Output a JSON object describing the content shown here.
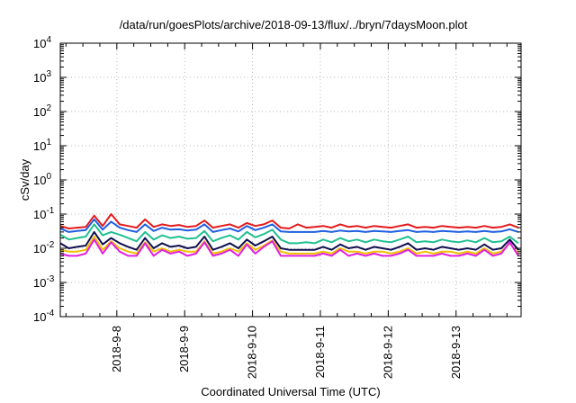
{
  "chart_data": {
    "type": "line",
    "title": "/data/run/goesPlots/archive/2018-09-13/flux/../bryn/7daysMoon.plot",
    "xlabel": "Coordinated Universal Time (UTC)",
    "ylabel": "cSv/day",
    "yscale": "log",
    "ylim": [
      0.0001,
      10000
    ],
    "xlim": [
      "2018-09-07T04:00",
      "2018-09-13T23:00"
    ],
    "grid": true,
    "legend": "none",
    "y_ticks": [
      {
        "base": "10",
        "exp": "-4"
      },
      {
        "base": "10",
        "exp": "-3"
      },
      {
        "base": "10",
        "exp": "-2"
      },
      {
        "base": "10",
        "exp": "-1"
      },
      {
        "base": "10",
        "exp": "0"
      },
      {
        "base": "10",
        "exp": "1"
      },
      {
        "base": "10",
        "exp": "2"
      },
      {
        "base": "10",
        "exp": "3"
      },
      {
        "base": "10",
        "exp": "4"
      }
    ],
    "x_ticks": [
      {
        "date": "2018-09-08",
        "label": "2018-9-8"
      },
      {
        "date": "2018-09-09",
        "label": "2018-9-9"
      },
      {
        "date": "2018-09-10",
        "label": "2018-9-10"
      },
      {
        "date": "2018-09-11",
        "label": "2018-9-11"
      },
      {
        "date": "2018-09-12",
        "label": "2018-9-12"
      },
      {
        "date": "2018-09-13",
        "label": "2018-9-13"
      }
    ],
    "series": [
      {
        "color": "#e41a1c",
        "x": [
          "2018-09-07T04:00",
          "2018-09-07T07:00",
          "2018-09-07T10:00",
          "2018-09-07T13:00",
          "2018-09-07T16:00",
          "2018-09-07T19:00",
          "2018-09-07T22:00",
          "2018-09-08T01:00",
          "2018-09-08T04:00",
          "2018-09-08T07:00",
          "2018-09-08T10:00",
          "2018-09-08T13:00",
          "2018-09-08T16:00",
          "2018-09-08T19:00",
          "2018-09-08T22:00",
          "2018-09-09T01:00",
          "2018-09-09T04:00",
          "2018-09-09T07:00",
          "2018-09-09T10:00",
          "2018-09-09T13:00",
          "2018-09-09T16:00",
          "2018-09-09T19:00",
          "2018-09-09T22:00",
          "2018-09-10T01:00",
          "2018-09-10T04:00",
          "2018-09-10T07:00",
          "2018-09-10T10:00",
          "2018-09-10T13:00",
          "2018-09-10T16:00",
          "2018-09-10T19:00",
          "2018-09-10T22:00",
          "2018-09-11T01:00",
          "2018-09-11T04:00",
          "2018-09-11T07:00",
          "2018-09-11T10:00",
          "2018-09-11T13:00",
          "2018-09-11T16:00",
          "2018-09-11T19:00",
          "2018-09-11T22:00",
          "2018-09-12T01:00",
          "2018-09-12T04:00",
          "2018-09-12T07:00",
          "2018-09-12T10:00",
          "2018-09-12T13:00",
          "2018-09-12T16:00",
          "2018-09-12T19:00",
          "2018-09-12T22:00",
          "2018-09-13T01:00",
          "2018-09-13T04:00",
          "2018-09-13T07:00",
          "2018-09-13T10:00",
          "2018-09-13T13:00",
          "2018-09-13T16:00",
          "2018-09-13T19:00",
          "2018-09-13T22:00"
        ],
        "values": [
          0.045,
          0.038,
          0.04,
          0.042,
          0.09,
          0.045,
          0.1,
          0.05,
          0.045,
          0.04,
          0.07,
          0.042,
          0.05,
          0.045,
          0.048,
          0.042,
          0.045,
          0.065,
          0.04,
          0.045,
          0.05,
          0.04,
          0.055,
          0.045,
          0.05,
          0.065,
          0.04,
          0.038,
          0.05,
          0.04,
          0.042,
          0.045,
          0.04,
          0.05,
          0.042,
          0.045,
          0.04,
          0.045,
          0.042,
          0.04,
          0.045,
          0.05,
          0.04,
          0.042,
          0.04,
          0.045,
          0.042,
          0.04,
          0.042,
          0.04,
          0.045,
          0.04,
          0.042,
          0.05,
          0.04
        ]
      },
      {
        "color": "#1f5fe0",
        "x": [
          "2018-09-07T04:00",
          "2018-09-07T07:00",
          "2018-09-07T10:00",
          "2018-09-07T13:00",
          "2018-09-07T16:00",
          "2018-09-07T19:00",
          "2018-09-07T22:00",
          "2018-09-08T01:00",
          "2018-09-08T04:00",
          "2018-09-08T07:00",
          "2018-09-08T10:00",
          "2018-09-08T13:00",
          "2018-09-08T16:00",
          "2018-09-08T19:00",
          "2018-09-08T22:00",
          "2018-09-09T01:00",
          "2018-09-09T04:00",
          "2018-09-09T07:00",
          "2018-09-09T10:00",
          "2018-09-09T13:00",
          "2018-09-09T16:00",
          "2018-09-09T19:00",
          "2018-09-09T22:00",
          "2018-09-10T01:00",
          "2018-09-10T04:00",
          "2018-09-10T07:00",
          "2018-09-10T10:00",
          "2018-09-10T13:00",
          "2018-09-10T16:00",
          "2018-09-10T19:00",
          "2018-09-10T22:00",
          "2018-09-11T01:00",
          "2018-09-11T04:00",
          "2018-09-11T07:00",
          "2018-09-11T10:00",
          "2018-09-11T13:00",
          "2018-09-11T16:00",
          "2018-09-11T19:00",
          "2018-09-11T22:00",
          "2018-09-12T01:00",
          "2018-09-12T04:00",
          "2018-09-12T07:00",
          "2018-09-12T10:00",
          "2018-09-12T13:00",
          "2018-09-12T16:00",
          "2018-09-12T19:00",
          "2018-09-12T22:00",
          "2018-09-13T01:00",
          "2018-09-13T04:00",
          "2018-09-13T07:00",
          "2018-09-13T10:00",
          "2018-09-13T13:00",
          "2018-09-13T16:00",
          "2018-09-13T19:00",
          "2018-09-13T22:00"
        ],
        "values": [
          0.038,
          0.03,
          0.032,
          0.034,
          0.07,
          0.035,
          0.06,
          0.04,
          0.034,
          0.03,
          0.05,
          0.032,
          0.04,
          0.035,
          0.036,
          0.033,
          0.035,
          0.05,
          0.03,
          0.034,
          0.038,
          0.031,
          0.045,
          0.034,
          0.04,
          0.05,
          0.031,
          0.03,
          0.03,
          0.03,
          0.03,
          0.032,
          0.03,
          0.033,
          0.031,
          0.032,
          0.03,
          0.032,
          0.031,
          0.03,
          0.032,
          0.034,
          0.03,
          0.031,
          0.03,
          0.032,
          0.031,
          0.03,
          0.031,
          0.03,
          0.032,
          0.03,
          0.031,
          0.036,
          0.03
        ]
      },
      {
        "color": "#20c090",
        "x": [
          "2018-09-07T04:00",
          "2018-09-07T07:00",
          "2018-09-07T10:00",
          "2018-09-07T13:00",
          "2018-09-07T16:00",
          "2018-09-07T19:00",
          "2018-09-07T22:00",
          "2018-09-08T01:00",
          "2018-09-08T04:00",
          "2018-09-08T07:00",
          "2018-09-08T10:00",
          "2018-09-08T13:00",
          "2018-09-08T16:00",
          "2018-09-08T19:00",
          "2018-09-08T22:00",
          "2018-09-09T01:00",
          "2018-09-09T04:00",
          "2018-09-09T07:00",
          "2018-09-09T10:00",
          "2018-09-09T13:00",
          "2018-09-09T16:00",
          "2018-09-09T19:00",
          "2018-09-09T22:00",
          "2018-09-10T01:00",
          "2018-09-10T04:00",
          "2018-09-10T07:00",
          "2018-09-10T10:00",
          "2018-09-10T13:00",
          "2018-09-10T16:00",
          "2018-09-10T19:00",
          "2018-09-10T22:00",
          "2018-09-11T01:00",
          "2018-09-11T04:00",
          "2018-09-11T07:00",
          "2018-09-11T10:00",
          "2018-09-11T13:00",
          "2018-09-11T16:00",
          "2018-09-11T19:00",
          "2018-09-11T22:00",
          "2018-09-12T01:00",
          "2018-09-12T04:00",
          "2018-09-12T07:00",
          "2018-09-12T10:00",
          "2018-09-12T13:00",
          "2018-09-12T16:00",
          "2018-09-12T19:00",
          "2018-09-12T22:00",
          "2018-09-13T01:00",
          "2018-09-13T04:00",
          "2018-09-13T07:00",
          "2018-09-13T10:00",
          "2018-09-13T13:00",
          "2018-09-13T16:00",
          "2018-09-13T19:00",
          "2018-09-13T22:00"
        ],
        "values": [
          0.025,
          0.018,
          0.02,
          0.022,
          0.05,
          0.024,
          0.03,
          0.025,
          0.02,
          0.016,
          0.03,
          0.018,
          0.024,
          0.02,
          0.022,
          0.019,
          0.02,
          0.032,
          0.016,
          0.02,
          0.024,
          0.018,
          0.03,
          0.021,
          0.026,
          0.035,
          0.018,
          0.014,
          0.014,
          0.015,
          0.014,
          0.018,
          0.015,
          0.02,
          0.016,
          0.018,
          0.015,
          0.018,
          0.016,
          0.015,
          0.018,
          0.022,
          0.015,
          0.016,
          0.015,
          0.018,
          0.016,
          0.015,
          0.017,
          0.015,
          0.02,
          0.015,
          0.016,
          0.022,
          0.014
        ]
      },
      {
        "color": "#101050",
        "x": [
          "2018-09-07T04:00",
          "2018-09-07T07:00",
          "2018-09-07T10:00",
          "2018-09-07T13:00",
          "2018-09-07T16:00",
          "2018-09-07T19:00",
          "2018-09-07T22:00",
          "2018-09-08T01:00",
          "2018-09-08T04:00",
          "2018-09-08T07:00",
          "2018-09-08T10:00",
          "2018-09-08T13:00",
          "2018-09-08T16:00",
          "2018-09-08T19:00",
          "2018-09-08T22:00",
          "2018-09-09T01:00",
          "2018-09-09T04:00",
          "2018-09-09T07:00",
          "2018-09-09T10:00",
          "2018-09-09T13:00",
          "2018-09-09T16:00",
          "2018-09-09T19:00",
          "2018-09-09T22:00",
          "2018-09-10T01:00",
          "2018-09-10T04:00",
          "2018-09-10T07:00",
          "2018-09-10T10:00",
          "2018-09-10T13:00",
          "2018-09-10T16:00",
          "2018-09-10T19:00",
          "2018-09-10T22:00",
          "2018-09-11T01:00",
          "2018-09-11T04:00",
          "2018-09-11T07:00",
          "2018-09-11T10:00",
          "2018-09-11T13:00",
          "2018-09-11T16:00",
          "2018-09-11T19:00",
          "2018-09-11T22:00",
          "2018-09-12T01:00",
          "2018-09-12T04:00",
          "2018-09-12T07:00",
          "2018-09-12T10:00",
          "2018-09-12T13:00",
          "2018-09-12T16:00",
          "2018-09-12T19:00",
          "2018-09-12T22:00",
          "2018-09-13T01:00",
          "2018-09-13T04:00",
          "2018-09-13T07:00",
          "2018-09-13T10:00",
          "2018-09-13T13:00",
          "2018-09-13T16:00",
          "2018-09-13T19:00",
          "2018-09-13T22:00"
        ],
        "values": [
          0.014,
          0.01,
          0.011,
          0.012,
          0.03,
          0.013,
          0.02,
          0.014,
          0.011,
          0.009,
          0.02,
          0.01,
          0.014,
          0.011,
          0.012,
          0.01,
          0.011,
          0.022,
          0.009,
          0.011,
          0.014,
          0.01,
          0.018,
          0.012,
          0.016,
          0.022,
          0.01,
          0.009,
          0.009,
          0.009,
          0.009,
          0.011,
          0.009,
          0.013,
          0.01,
          0.011,
          0.009,
          0.011,
          0.01,
          0.009,
          0.011,
          0.014,
          0.009,
          0.01,
          0.009,
          0.011,
          0.01,
          0.009,
          0.01,
          0.009,
          0.013,
          0.009,
          0.01,
          0.018,
          0.009
        ]
      },
      {
        "color": "#f0c000",
        "x": [
          "2018-09-07T04:00",
          "2018-09-07T07:00",
          "2018-09-07T10:00",
          "2018-09-07T13:00",
          "2018-09-07T16:00",
          "2018-09-07T19:00",
          "2018-09-07T22:00",
          "2018-09-08T01:00",
          "2018-09-08T04:00",
          "2018-09-08T07:00",
          "2018-09-08T10:00",
          "2018-09-08T13:00",
          "2018-09-08T16:00",
          "2018-09-08T19:00",
          "2018-09-08T22:00",
          "2018-09-09T01:00",
          "2018-09-09T04:00",
          "2018-09-09T07:00",
          "2018-09-09T10:00",
          "2018-09-09T13:00",
          "2018-09-09T16:00",
          "2018-09-09T19:00",
          "2018-09-09T22:00",
          "2018-09-10T01:00",
          "2018-09-10T04:00",
          "2018-09-10T07:00",
          "2018-09-10T10:00",
          "2018-09-10T13:00",
          "2018-09-10T16:00",
          "2018-09-10T19:00",
          "2018-09-10T22:00",
          "2018-09-11T01:00",
          "2018-09-11T04:00",
          "2018-09-11T07:00",
          "2018-09-11T10:00",
          "2018-09-11T13:00",
          "2018-09-11T16:00",
          "2018-09-11T19:00",
          "2018-09-11T22:00",
          "2018-09-12T01:00",
          "2018-09-12T04:00",
          "2018-09-12T07:00",
          "2018-09-12T10:00",
          "2018-09-12T13:00",
          "2018-09-12T16:00",
          "2018-09-12T19:00",
          "2018-09-12T22:00",
          "2018-09-13T01:00",
          "2018-09-13T04:00",
          "2018-09-13T07:00",
          "2018-09-13T10:00",
          "2018-09-13T13:00",
          "2018-09-13T16:00",
          "2018-09-13T19:00",
          "2018-09-13T22:00"
        ],
        "values": [
          0.009,
          0.008,
          0.008,
          0.009,
          0.022,
          0.009,
          0.016,
          0.01,
          0.008,
          0.007,
          0.015,
          0.008,
          0.01,
          0.008,
          0.009,
          0.008,
          0.008,
          0.016,
          0.007,
          0.008,
          0.01,
          0.008,
          0.014,
          0.009,
          0.012,
          0.017,
          0.008,
          0.007,
          0.007,
          0.007,
          0.007,
          0.008,
          0.007,
          0.01,
          0.008,
          0.008,
          0.007,
          0.008,
          0.008,
          0.007,
          0.008,
          0.01,
          0.007,
          0.008,
          0.007,
          0.008,
          0.008,
          0.007,
          0.008,
          0.007,
          0.01,
          0.007,
          0.008,
          0.014,
          0.007
        ]
      },
      {
        "color": "#e020e0",
        "x": [
          "2018-09-07T04:00",
          "2018-09-07T07:00",
          "2018-09-07T10:00",
          "2018-09-07T13:00",
          "2018-09-07T16:00",
          "2018-09-07T19:00",
          "2018-09-07T22:00",
          "2018-09-08T01:00",
          "2018-09-08T04:00",
          "2018-09-08T07:00",
          "2018-09-08T10:00",
          "2018-09-08T13:00",
          "2018-09-08T16:00",
          "2018-09-08T19:00",
          "2018-09-08T22:00",
          "2018-09-09T01:00",
          "2018-09-09T04:00",
          "2018-09-09T07:00",
          "2018-09-09T10:00",
          "2018-09-09T13:00",
          "2018-09-09T16:00",
          "2018-09-09T19:00",
          "2018-09-09T22:00",
          "2018-09-10T01:00",
          "2018-09-10T04:00",
          "2018-09-10T07:00",
          "2018-09-10T10:00",
          "2018-09-10T13:00",
          "2018-09-10T16:00",
          "2018-09-10T19:00",
          "2018-09-10T22:00",
          "2018-09-11T01:00",
          "2018-09-11T04:00",
          "2018-09-11T07:00",
          "2018-09-11T10:00",
          "2018-09-11T13:00",
          "2018-09-11T16:00",
          "2018-09-11T19:00",
          "2018-09-11T22:00",
          "2018-09-12T01:00",
          "2018-09-12T04:00",
          "2018-09-12T07:00",
          "2018-09-12T10:00",
          "2018-09-12T13:00",
          "2018-09-12T16:00",
          "2018-09-12T19:00",
          "2018-09-12T22:00",
          "2018-09-13T01:00",
          "2018-09-13T04:00",
          "2018-09-13T07:00",
          "2018-09-13T10:00",
          "2018-09-13T13:00",
          "2018-09-13T16:00",
          "2018-09-13T19:00",
          "2018-09-13T22:00"
        ],
        "values": [
          0.007,
          0.006,
          0.006,
          0.007,
          0.018,
          0.007,
          0.015,
          0.008,
          0.006,
          0.006,
          0.014,
          0.006,
          0.009,
          0.007,
          0.008,
          0.006,
          0.007,
          0.015,
          0.006,
          0.007,
          0.009,
          0.006,
          0.013,
          0.007,
          0.011,
          0.016,
          0.006,
          0.006,
          0.006,
          0.006,
          0.006,
          0.007,
          0.006,
          0.009,
          0.006,
          0.007,
          0.006,
          0.007,
          0.006,
          0.006,
          0.007,
          0.009,
          0.006,
          0.006,
          0.006,
          0.007,
          0.006,
          0.006,
          0.007,
          0.006,
          0.009,
          0.006,
          0.007,
          0.015,
          0.006
        ]
      }
    ]
  }
}
